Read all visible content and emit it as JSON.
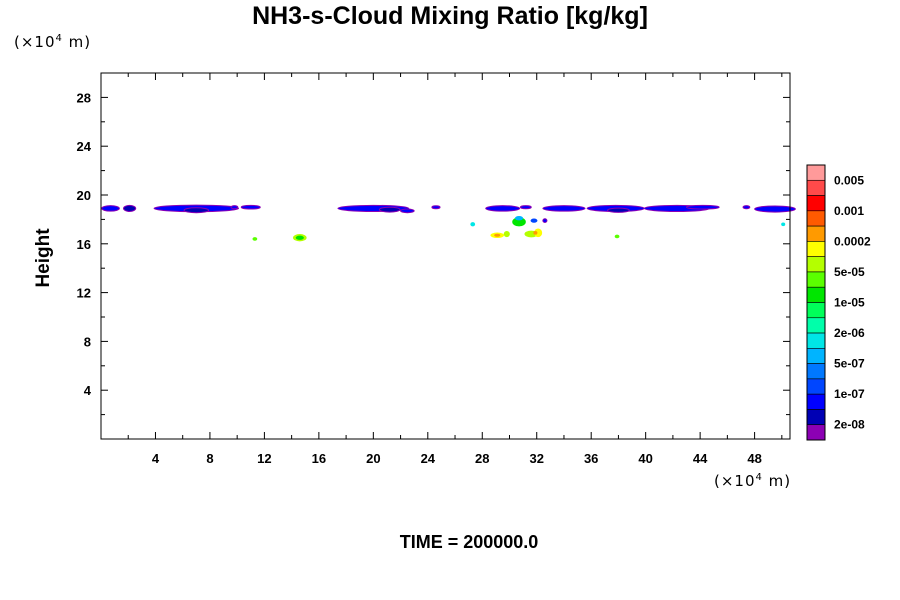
{
  "chart_data": {
    "type": "heatmap",
    "title": "NH3-s-Cloud Mixing Ratio [kg/kg]",
    "xlabel": "",
    "ylabel": "Height",
    "x_unit_prefix": "(×10",
    "x_unit_exp": "4",
    "x_unit_suffix": " m)",
    "y_unit_prefix": "(×10",
    "y_unit_exp": "4",
    "y_unit_suffix": " m)",
    "xlim": [
      0,
      50.6
    ],
    "ylim": [
      0,
      30
    ],
    "x_ticks": [
      "4",
      "8",
      "12",
      "16",
      "20",
      "24",
      "28",
      "32",
      "36",
      "40",
      "44",
      "48"
    ],
    "y_ticks": [
      "4",
      "8",
      "12",
      "16",
      "20",
      "24",
      "28"
    ],
    "footer": "TIME = 200000.0",
    "colorbar": {
      "colors": [
        "#ff9a9a",
        "#ff4a4a",
        "#ff0000",
        "#ff5a00",
        "#ff9a00",
        "#ffff00",
        "#b4ff00",
        "#5aff00",
        "#00e600",
        "#00ff5a",
        "#00ffaa",
        "#00e6e6",
        "#00b4ff",
        "#0078ff",
        "#0046ff",
        "#0000ff",
        "#0000b4",
        "#8c00b4"
      ],
      "labels": [
        "0.005",
        "0.001",
        "0.0002",
        "5e-05",
        "1e-05",
        "2e-06",
        "5e-07",
        "1e-07",
        "2e-08"
      ]
    },
    "cloud_patches": [
      {
        "x": 0.7,
        "y": 18.9,
        "w": 1.3,
        "h": 0.45,
        "color": "#0000ff"
      },
      {
        "x": 2.1,
        "y": 18.9,
        "w": 0.9,
        "h": 0.5,
        "color": "#0000b4"
      },
      {
        "x": 7.0,
        "y": 18.9,
        "w": 6.2,
        "h": 0.55,
        "color": "#0000ff"
      },
      {
        "x": 7.0,
        "y": 18.75,
        "w": 1.8,
        "h": 0.4,
        "color": "#0000b4"
      },
      {
        "x": 9.8,
        "y": 19.0,
        "w": 0.5,
        "h": 0.25,
        "color": "#0000ff"
      },
      {
        "x": 11.0,
        "y": 19.0,
        "w": 1.4,
        "h": 0.3,
        "color": "#0000ff"
      },
      {
        "x": 20.0,
        "y": 18.9,
        "w": 5.2,
        "h": 0.5,
        "color": "#0000ff"
      },
      {
        "x": 21.2,
        "y": 18.8,
        "w": 1.5,
        "h": 0.4,
        "color": "#0000b4"
      },
      {
        "x": 22.5,
        "y": 18.7,
        "w": 1.0,
        "h": 0.3,
        "color": "#0000ff"
      },
      {
        "x": 24.6,
        "y": 19.0,
        "w": 0.6,
        "h": 0.2,
        "color": "#0000ff"
      },
      {
        "x": 29.5,
        "y": 18.9,
        "w": 2.5,
        "h": 0.45,
        "color": "#0000ff"
      },
      {
        "x": 31.2,
        "y": 19.0,
        "w": 0.8,
        "h": 0.25,
        "color": "#0000ff"
      },
      {
        "x": 34.0,
        "y": 18.9,
        "w": 3.1,
        "h": 0.45,
        "color": "#0000ff"
      },
      {
        "x": 37.8,
        "y": 18.9,
        "w": 4.2,
        "h": 0.5,
        "color": "#0000ff"
      },
      {
        "x": 38.0,
        "y": 18.75,
        "w": 1.6,
        "h": 0.35,
        "color": "#0000b4"
      },
      {
        "x": 42.3,
        "y": 18.9,
        "w": 4.8,
        "h": 0.5,
        "color": "#0000ff"
      },
      {
        "x": 44.2,
        "y": 19.0,
        "w": 2.4,
        "h": 0.3,
        "color": "#0000ff"
      },
      {
        "x": 47.4,
        "y": 19.0,
        "w": 0.5,
        "h": 0.25,
        "color": "#0000ff"
      },
      {
        "x": 49.5,
        "y": 18.85,
        "w": 3.0,
        "h": 0.5,
        "color": "#0000ff"
      },
      {
        "x": 11.3,
        "y": 16.4,
        "w": 0.35,
        "h": 0.3,
        "color": "#5aff00"
      },
      {
        "x": 14.6,
        "y": 16.5,
        "w": 1.0,
        "h": 0.6,
        "color": "#b4ff00"
      },
      {
        "x": 14.6,
        "y": 16.5,
        "w": 0.6,
        "h": 0.35,
        "color": "#00e600"
      },
      {
        "x": 27.3,
        "y": 17.6,
        "w": 0.35,
        "h": 0.35,
        "color": "#00e6e6"
      },
      {
        "x": 29.1,
        "y": 16.7,
        "w": 1.0,
        "h": 0.45,
        "color": "#ffff00"
      },
      {
        "x": 29.1,
        "y": 16.7,
        "w": 0.45,
        "h": 0.25,
        "color": "#ff9a00"
      },
      {
        "x": 29.8,
        "y": 16.8,
        "w": 0.45,
        "h": 0.5,
        "color": "#b4ff00"
      },
      {
        "x": 30.7,
        "y": 17.8,
        "w": 1.0,
        "h": 0.75,
        "color": "#00e600"
      },
      {
        "x": 30.7,
        "y": 18.1,
        "w": 0.6,
        "h": 0.35,
        "color": "#00b4ff"
      },
      {
        "x": 31.6,
        "y": 16.8,
        "w": 1.0,
        "h": 0.55,
        "color": "#b4ff00"
      },
      {
        "x": 32.1,
        "y": 16.9,
        "w": 0.6,
        "h": 0.7,
        "color": "#ffff00"
      },
      {
        "x": 31.9,
        "y": 16.9,
        "w": 0.3,
        "h": 0.3,
        "color": "#ff9a00"
      },
      {
        "x": 31.8,
        "y": 17.9,
        "w": 0.5,
        "h": 0.35,
        "color": "#0046ff"
      },
      {
        "x": 32.6,
        "y": 17.9,
        "w": 0.3,
        "h": 0.3,
        "color": "#0000ff"
      },
      {
        "x": 37.9,
        "y": 16.6,
        "w": 0.35,
        "h": 0.3,
        "color": "#5aff00"
      },
      {
        "x": 50.1,
        "y": 17.6,
        "w": 0.3,
        "h": 0.3,
        "color": "#00e6e6"
      }
    ]
  }
}
